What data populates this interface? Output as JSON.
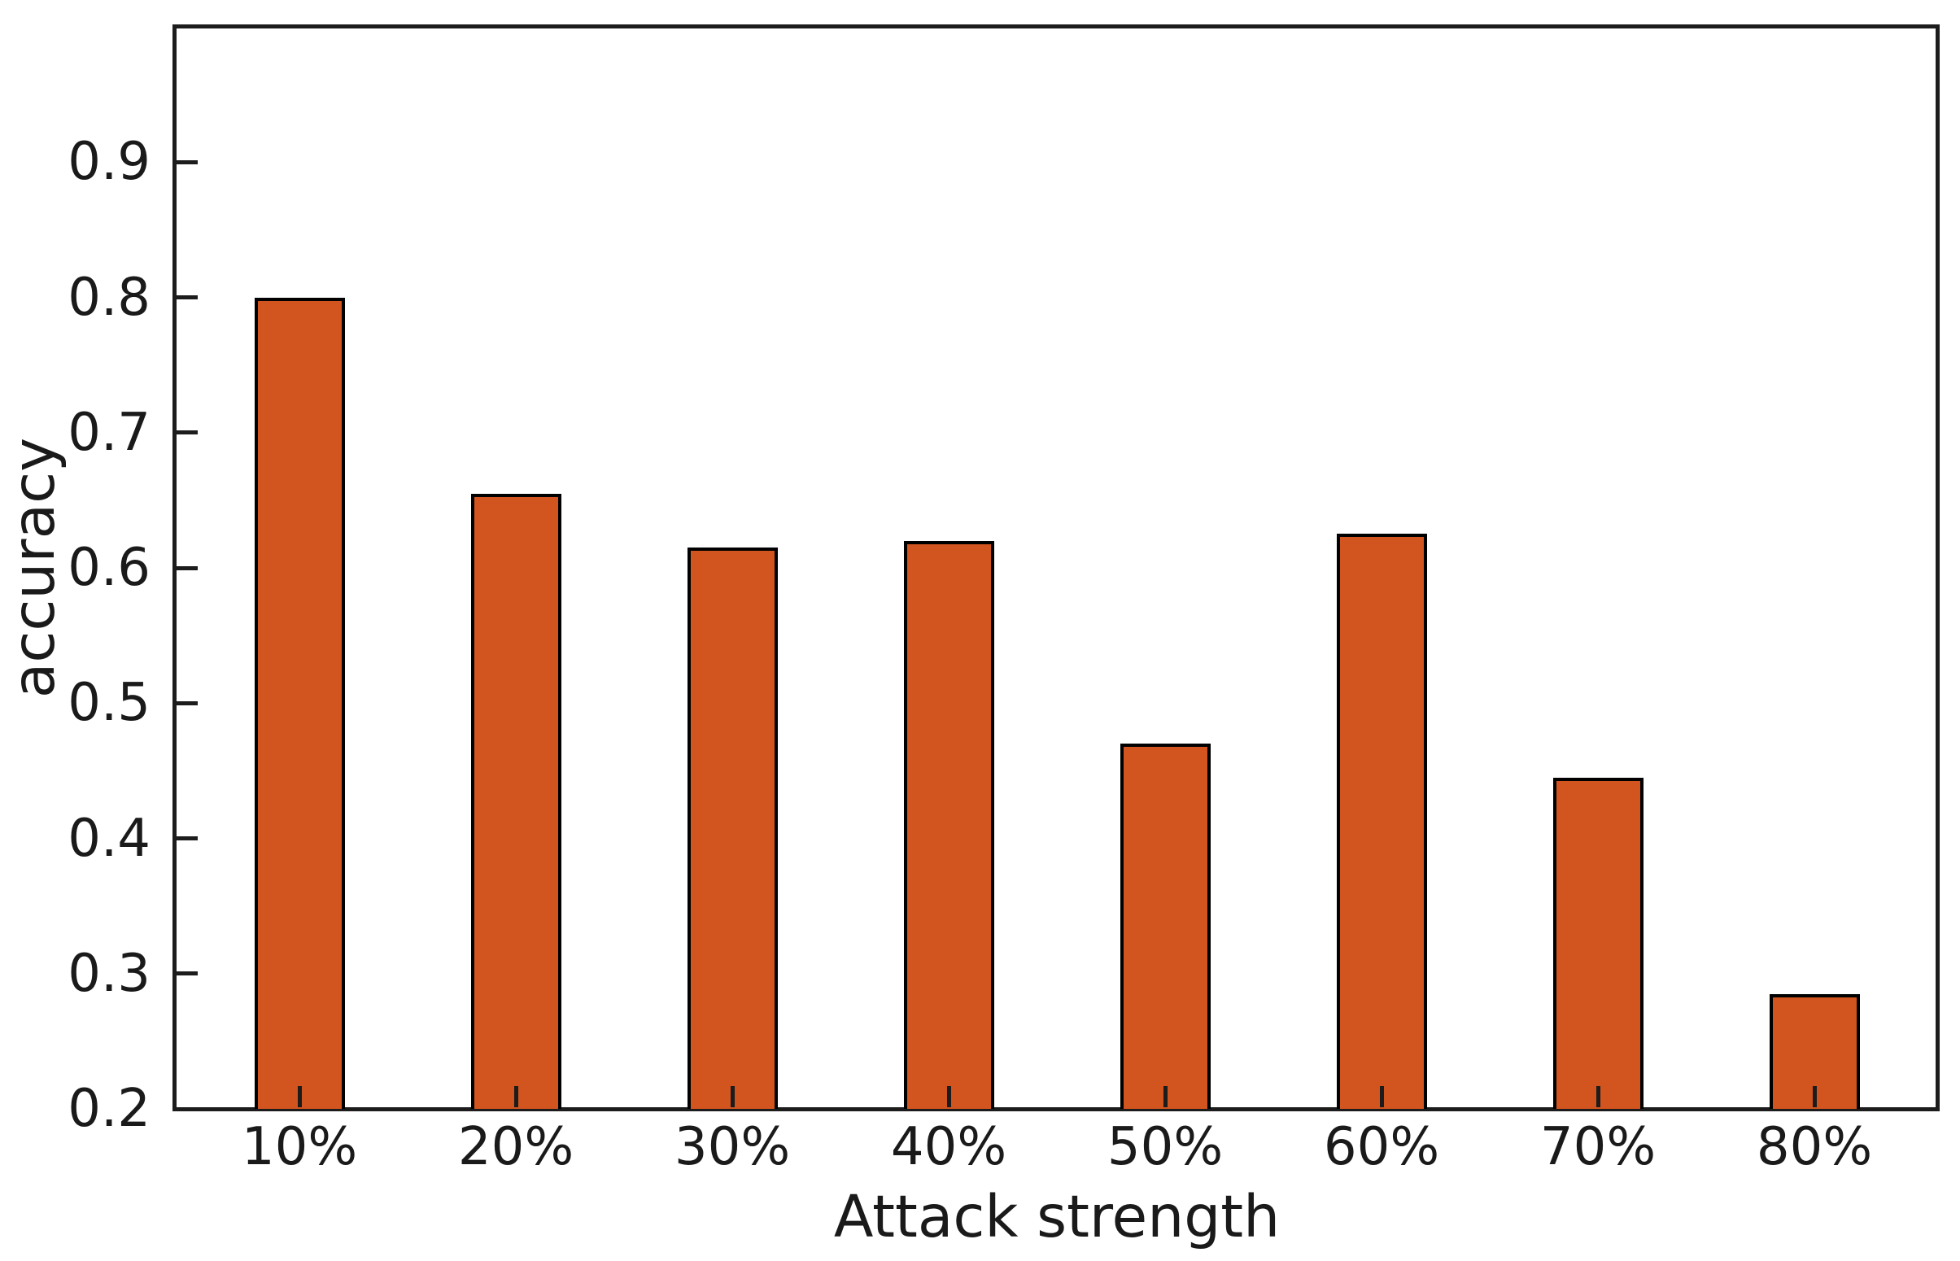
{
  "chart_data": {
    "type": "bar",
    "title": "",
    "xlabel": "Attack strength",
    "ylabel": "accuracy",
    "categories": [
      "10%",
      "20%",
      "30%",
      "40%",
      "50%",
      "60%",
      "70%",
      "80%"
    ],
    "values": [
      0.8,
      0.655,
      0.615,
      0.62,
      0.47,
      0.625,
      0.445,
      0.285
    ],
    "ylim": [
      0.2,
      1.0
    ],
    "yticks": [
      0.2,
      0.3,
      0.4,
      0.5,
      0.6,
      0.7,
      0.8,
      0.9
    ],
    "ytick_labels": [
      "0.2",
      "0.3",
      "0.4",
      "0.5",
      "0.6",
      "0.7",
      "0.8",
      "0.9"
    ],
    "grid": false,
    "legend": null,
    "bar_color": "#d2541e",
    "bar_edge_color": "#000000",
    "axis_color": "#1c1c1c",
    "background_color": "#ffffff",
    "tick_direction": "in"
  }
}
